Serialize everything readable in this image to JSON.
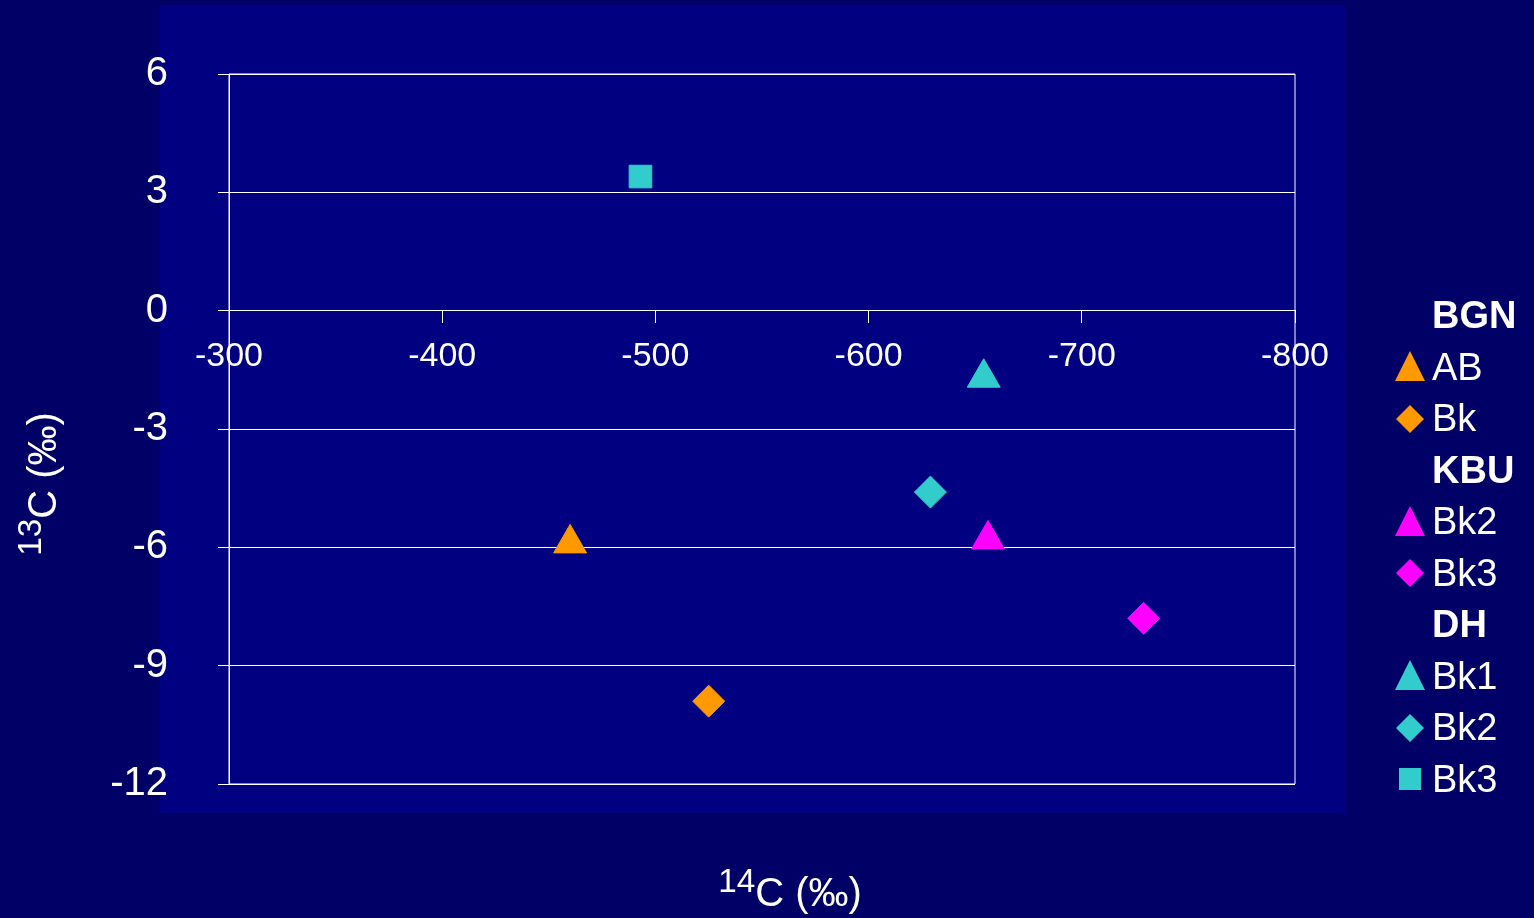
{
  "chart_data": {
    "type": "scatter",
    "xlabel": "$^{14}$C (‰)",
    "ylabel": "$^{13}$C (‰)",
    "xlim": [
      -300,
      -800
    ],
    "xticks": [
      -300,
      -400,
      -500,
      -600,
      -700,
      -800
    ],
    "ylim": [
      -12,
      6
    ],
    "yticks": [
      -12,
      -9,
      -6,
      -3,
      0,
      3,
      6
    ],
    "grid": "y",
    "legend": "right",
    "series": [
      {
        "name": "BGN"
      },
      {
        "name": "AB",
        "color": "#ff9900",
        "marker": "triangle",
        "x": [
          -460
        ],
        "values": [
          -5.9
        ]
      },
      {
        "name": "Bk",
        "color": "#ff9900",
        "marker": "diamond",
        "x": [
          -525
        ],
        "values": [
          -9.9
        ]
      },
      {
        "name": "KBU"
      },
      {
        "name": "Bk2",
        "color": "#ff00ff",
        "marker": "triangle",
        "x": [
          -656
        ],
        "values": [
          -5.8
        ]
      },
      {
        "name": "Bk3",
        "color": "#ff00ff",
        "marker": "diamond",
        "x": [
          -729
        ],
        "values": [
          -7.8
        ]
      },
      {
        "name": "DH"
      },
      {
        "name": "Bk1",
        "color": "#33cccc",
        "marker": "triangle",
        "x": [
          -654
        ],
        "values": [
          -1.7
        ]
      },
      {
        "name": "Bk2",
        "color": "#33cccc",
        "marker": "diamond",
        "x": [
          -629
        ],
        "values": [
          -4.6
        ]
      },
      {
        "name": "Bk3",
        "color": "#33cccc",
        "marker": "square",
        "x": [
          -493
        ],
        "values": [
          3.4
        ]
      }
    ]
  }
}
